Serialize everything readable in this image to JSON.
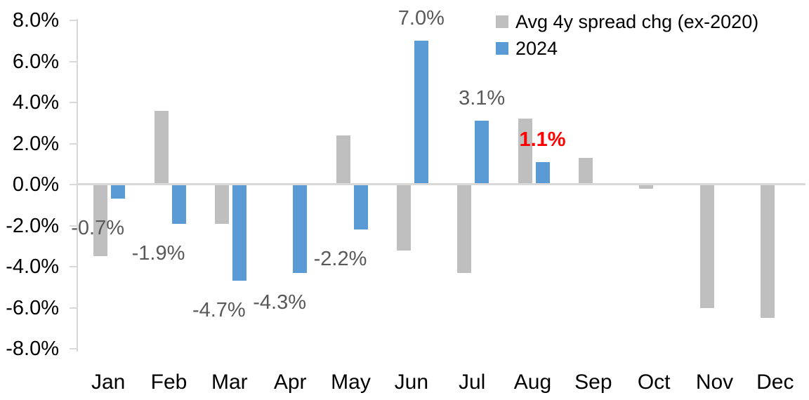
{
  "chart_data": {
    "type": "bar",
    "title": "",
    "xlabel": "",
    "ylabel": "",
    "grid": "zero-line-only",
    "categories": [
      "Jan",
      "Feb",
      "Mar",
      "Apr",
      "May",
      "Jun",
      "Jul",
      "Aug",
      "Sep",
      "Oct",
      "Nov",
      "Dec"
    ],
    "series": [
      {
        "name": "Avg 4y spread chg (ex-2020)",
        "color": "#BFBFBF",
        "values": [
          -3.5,
          3.6,
          -1.9,
          0.0,
          2.4,
          -3.2,
          -4.3,
          3.2,
          1.3,
          -0.2,
          -6.0,
          -6.5
        ]
      },
      {
        "name": "2024",
        "color": "#5B9BD5",
        "values": [
          -0.7,
          -1.9,
          -4.7,
          -4.3,
          -2.2,
          7.0,
          3.1,
          1.1,
          null,
          null,
          null,
          null
        ]
      }
    ],
    "data_labels": [
      {
        "index": 0,
        "text": "-0.7%",
        "color": "#595959",
        "bold": false
      },
      {
        "index": 1,
        "text": "-1.9%",
        "color": "#595959",
        "bold": false
      },
      {
        "index": 2,
        "text": "-4.7%",
        "color": "#595959",
        "bold": false
      },
      {
        "index": 3,
        "text": "-4.3%",
        "color": "#595959",
        "bold": false
      },
      {
        "index": 4,
        "text": "-2.2%",
        "color": "#595959",
        "bold": false
      },
      {
        "index": 5,
        "text": "7.0%",
        "color": "#595959",
        "bold": false
      },
      {
        "index": 6,
        "text": "3.1%",
        "color": "#595959",
        "bold": false
      },
      {
        "index": 7,
        "text": "1.1%",
        "color": "#FF0000",
        "bold": true
      }
    ],
    "y_axis": {
      "min": -8,
      "max": 8,
      "step": 2,
      "tick_labels": [
        "8.0%",
        "6.0%",
        "4.0%",
        "2.0%",
        "0.0%",
        "-2.0%",
        "-4.0%",
        "-6.0%",
        "-8.0%"
      ]
    },
    "legend": {
      "position": "top-right",
      "entries": [
        {
          "label": "Avg 4y spread chg (ex-2020)",
          "color": "#BFBFBF"
        },
        {
          "label": "2024",
          "color": "#5B9BD5"
        }
      ]
    }
  },
  "colors": {
    "background": "#FFFFFF",
    "axis_line": "#D9D9D9",
    "tick_text": "#000000",
    "data_label_default": "#595959",
    "data_label_highlight": "#FF0000",
    "series_avg": "#BFBFBF",
    "series_2024": "#5B9BD5"
  }
}
